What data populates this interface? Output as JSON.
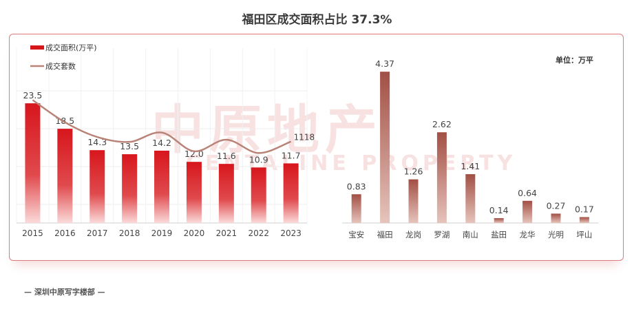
{
  "title": "福田区成交面积占比 37.3%",
  "unit_label": "单位：万平",
  "footer": "— 深圳中原写字楼部 —",
  "watermark": {
    "cn": "中原地产",
    "en": "CENTALINE PROPERTY"
  },
  "colors": {
    "bar_red": "#d7161c",
    "bar_brown": "#a24f44",
    "line": "#b98477"
  },
  "chart_data": [
    {
      "type": "bar",
      "categories": [
        "2015",
        "2016",
        "2017",
        "2018",
        "2019",
        "2020",
        "2021",
        "2022",
        "2023"
      ],
      "series": [
        {
          "name": "成交面积(万平)",
          "type": "bar",
          "values": [
            23.5,
            18.5,
            14.3,
            13.5,
            14.2,
            12.0,
            11.6,
            10.9,
            11.7
          ],
          "labels": [
            "23.5",
            "18.5",
            "14.3",
            "13.5",
            "14.2",
            "12.0",
            "11.6",
            "10.9",
            "11.7"
          ]
        },
        {
          "name": "成交套数",
          "type": "line",
          "values": [
            2050,
            1550,
            1220,
            1110,
            1320,
            900,
            1160,
            860,
            1118
          ],
          "end_label": "1118"
        }
      ],
      "legend": "top-left",
      "grid": true
    },
    {
      "type": "bar",
      "categories": [
        "宝安",
        "福田",
        "龙岗",
        "罗湖",
        "南山",
        "盐田",
        "龙华",
        "光明",
        "坪山"
      ],
      "values": [
        0.83,
        4.37,
        1.26,
        2.62,
        1.41,
        0.14,
        0.64,
        0.27,
        0.17
      ],
      "labels": [
        "0.83",
        "4.37",
        "1.26",
        "2.62",
        "1.41",
        "0.14",
        "0.64",
        "0.27",
        "0.17"
      ],
      "ylabel": "单位：万平"
    }
  ]
}
